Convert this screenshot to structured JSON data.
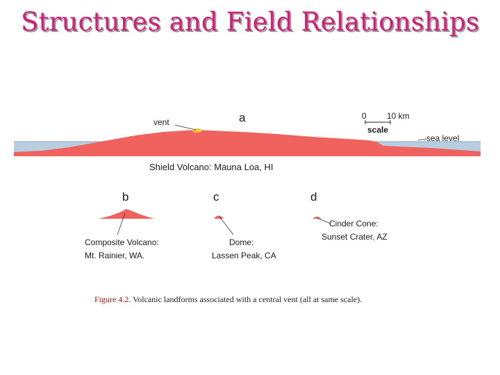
{
  "title": "Structures and Field Relationships",
  "labels": {
    "panel_a": "a",
    "panel_b": "b",
    "panel_c": "c",
    "panel_d": "d",
    "vent": "vent",
    "scale_zero": "0",
    "scale_ten": "10 km",
    "scale": "scale",
    "sea_level": "sea level",
    "shield": "Shield Volcano:  Mauna Loa, HI",
    "composite_1": "Composite Volcano:",
    "composite_2": "Mt. Rainier, WA.",
    "dome_1": "Dome:",
    "dome_2": "Lassen Peak, CA",
    "cinder_1": "Cinder Cone:",
    "cinder_2": "Sunset Crater, AZ"
  },
  "caption": {
    "figure": "Figure 4.2",
    "text": ". Volcanic landforms associated with a central vent (all at same scale)."
  },
  "colors": {
    "volcano": "#f0625e",
    "sea": "#b9cde0",
    "vent": "#f2c23a",
    "title": "#d21f78"
  }
}
